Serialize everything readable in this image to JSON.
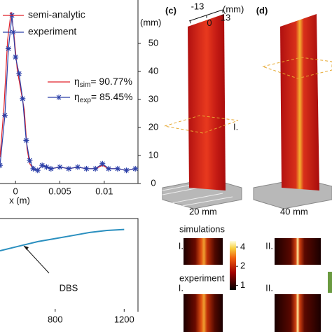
{
  "chart_data": [
    {
      "type": "line",
      "xlabel": "x (m)",
      "xlim": [
        -0.00175,
        0.0138
      ],
      "ylim": [
        0,
        1
      ],
      "xticks": [
        0,
        0.005,
        0.01
      ],
      "series": [
        {
          "name": "semi-analytic",
          "color": "#e0202a",
          "marker": "none",
          "x": [
            -0.00175,
            -0.0013,
            -0.0009,
            -0.0005,
            -0.0002,
            0.0002,
            0.0006,
            0.001,
            0.0013,
            0.0016,
            0.002,
            0.0025,
            0.003,
            0.004,
            0.005,
            0.006,
            0.007,
            0.008,
            0.009,
            0.0098,
            0.0105,
            0.0115,
            0.0125,
            0.0135
          ],
          "values": [
            0.1,
            0.4,
            0.8,
            0.97,
            0.85,
            0.62,
            0.5,
            0.38,
            0.15,
            0.06,
            0.03,
            0.02,
            0.05,
            0.03,
            0.04,
            0.03,
            0.04,
            0.03,
            0.03,
            0.05,
            0.03,
            0.03,
            0.02,
            0.03
          ]
        },
        {
          "name": "experiment",
          "color": "#2b3fa8",
          "marker": "star",
          "x": [
            -0.00175,
            -0.0012,
            -0.0008,
            -0.0004,
            0,
            0.0004,
            0.0008,
            0.0012,
            0.0016,
            0.002,
            0.0025,
            0.003,
            0.0035,
            0.004,
            0.005,
            0.006,
            0.007,
            0.008,
            0.009,
            0.0098,
            0.0105,
            0.0115,
            0.0125,
            0.0135
          ],
          "values": [
            0.05,
            0.35,
            0.75,
            0.95,
            0.7,
            0.6,
            0.45,
            0.2,
            0.08,
            0.03,
            0.02,
            0.05,
            0.04,
            0.03,
            0.04,
            0.03,
            0.04,
            0.03,
            0.03,
            0.06,
            0.03,
            0.03,
            0.02,
            0.03
          ]
        }
      ],
      "annotations": [
        {
          "symbol": "η",
          "sub": "sim",
          "text": "= 90.77%",
          "color": "#e0202a"
        },
        {
          "symbol": "η",
          "sub": "exp",
          "text": "= 85.45%",
          "color": "#2b3fa8"
        }
      ]
    },
    {
      "type": "line",
      "xlim": [
        480,
        1280
      ],
      "ylim": [
        0,
        1
      ],
      "xticks": [
        800,
        1200
      ],
      "series": [
        {
          "name": "DBS",
          "color": "#2a8fbf",
          "marker": "none",
          "x": [
            480,
            600,
            700,
            800,
            900,
            1000,
            1100,
            1200
          ],
          "values": [
            0.6,
            0.65,
            0.69,
            0.72,
            0.75,
            0.78,
            0.8,
            0.81
          ]
        }
      ],
      "annotations": [
        {
          "text": "DBS"
        }
      ]
    }
  ],
  "figure": {
    "height_axis": {
      "label": "(mm)",
      "lim": [
        0,
        55
      ],
      "ticks": [
        0,
        10,
        20,
        30,
        40,
        50
      ]
    },
    "panel_c": {
      "label": "(c)",
      "width_ticks": [
        -13,
        0,
        13
      ],
      "width_unit": "(mm)",
      "slice": "I.",
      "caption": "20 mm"
    },
    "panel_d": {
      "label": "(d)",
      "caption": "40 mm"
    },
    "simulations": {
      "title": "simulations",
      "left": "I.",
      "right": "II."
    },
    "experiment": {
      "title": "experiment",
      "left": "I.",
      "right": "II."
    },
    "colorbar": {
      "log": true,
      "lim": [
        0.85,
        5
      ],
      "ticks": [
        1,
        2,
        4
      ]
    }
  }
}
